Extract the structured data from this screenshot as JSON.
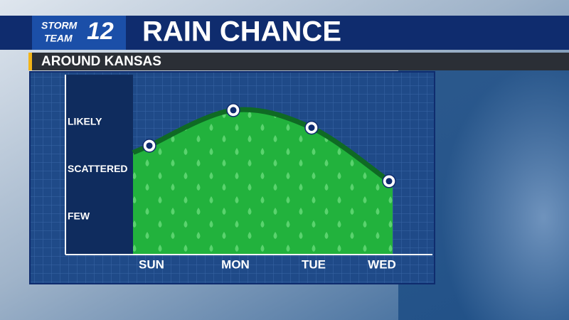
{
  "chart_data": {
    "type": "area",
    "title": "RAIN CHANCE",
    "subtitle": "AROUND KANSAS",
    "logo": {
      "line1": "STORM",
      "line2": "TEAM",
      "number": "12"
    },
    "categories": [
      "SUN",
      "MON",
      "TUE",
      "WED"
    ],
    "values": [
      1.5,
      2.25,
      1.88,
      0.75
    ],
    "color": "#1fb33a",
    "line_color": "#0f6a24",
    "ylim": [
      -0.8,
      3
    ],
    "yticks": [
      {
        "value": 0,
        "label": "FEW"
      },
      {
        "value": 1,
        "label": "SCATTERED"
      },
      {
        "value": 2,
        "label": "LIKELY"
      }
    ],
    "grid": true
  }
}
